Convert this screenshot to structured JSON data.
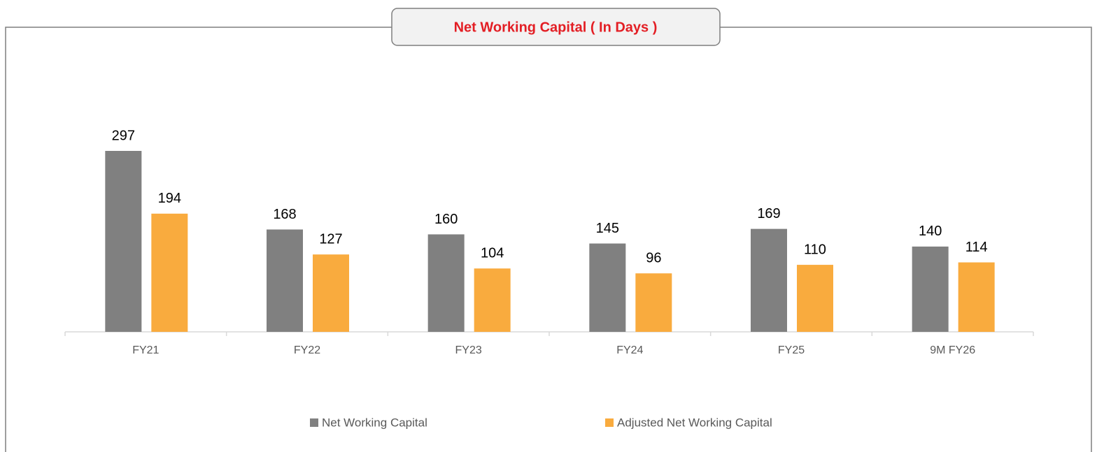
{
  "chart_data": {
    "type": "bar",
    "title": "Net Working Capital  ( In Days )",
    "categories": [
      "FY21",
      "FY22",
      "FY23",
      "FY24",
      "FY25",
      "9M FY26"
    ],
    "series": [
      {
        "name": "Net Working Capital",
        "color": "#808080",
        "values": [
          297,
          168,
          160,
          145,
          169,
          140
        ]
      },
      {
        "name": "Adjusted Net Working Capital",
        "color": "#f9ab3e",
        "values": [
          194,
          127,
          104,
          96,
          110,
          114
        ]
      }
    ]
  }
}
